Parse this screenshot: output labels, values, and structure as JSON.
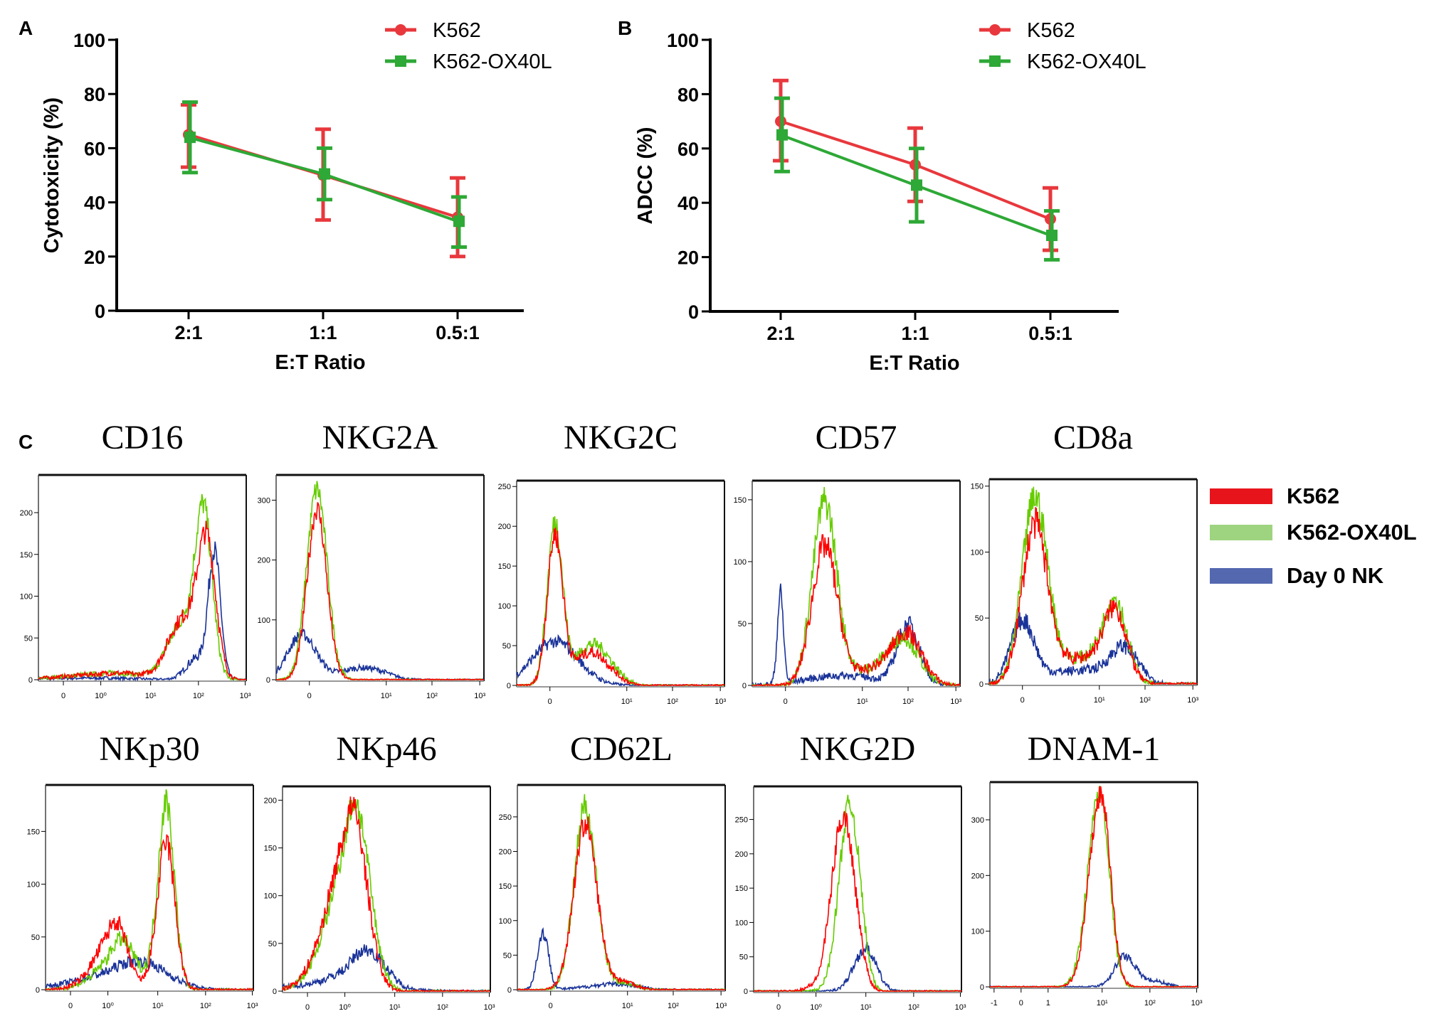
{
  "panel_labels": {
    "a": "A",
    "b": "B",
    "c": "C"
  },
  "colors": {
    "k562": "#e8383d",
    "k562_ox40l": "#2ea836",
    "hist_k562": "#ff0000",
    "hist_ox40l": "#66cc00",
    "hist_day0": "#1a3399",
    "legend_k562": "#e8141c",
    "legend_ox40l": "#9ed47f",
    "legend_day0": "#5468b0"
  },
  "chart_data": [
    {
      "type": "line",
      "panel": "A",
      "xlabel": "E:T Ratio",
      "ylabel": "Cytotoxicity (%)",
      "categories": [
        "2:1",
        "1:1",
        "0.5:1"
      ],
      "ylim": [
        0,
        100
      ],
      "yticks": [
        0,
        20,
        40,
        60,
        80,
        100
      ],
      "legend_position": "top-right",
      "series": [
        {
          "name": "K562",
          "marker": "circle",
          "values": [
            65,
            50,
            34.5
          ],
          "err_high": [
            76,
            67,
            49
          ],
          "err_low": [
            53,
            33.5,
            20
          ]
        },
        {
          "name": "K562-OX40L",
          "marker": "square",
          "values": [
            64,
            50.5,
            33
          ],
          "err_high": [
            77,
            60,
            42
          ],
          "err_low": [
            51,
            41,
            23.5
          ]
        }
      ]
    },
    {
      "type": "line",
      "panel": "B",
      "xlabel": "E:T Ratio",
      "ylabel": "ADCC (%)",
      "categories": [
        "2:1",
        "1:1",
        "0.5:1"
      ],
      "ylim": [
        0,
        100
      ],
      "yticks": [
        0,
        20,
        40,
        60,
        80,
        100
      ],
      "legend_position": "top-right",
      "series": [
        {
          "name": "K562",
          "marker": "circle",
          "values": [
            70,
            54,
            34
          ],
          "err_high": [
            85,
            67.5,
            45.5
          ],
          "err_low": [
            55.5,
            40.5,
            22.5
          ]
        },
        {
          "name": "K562-OX40L",
          "marker": "square",
          "values": [
            65,
            46.5,
            28
          ],
          "err_high": [
            78.5,
            60,
            37
          ],
          "err_low": [
            51.5,
            33,
            19
          ]
        }
      ]
    },
    {
      "type": "histogram_overlay",
      "panel": "C",
      "legend": [
        "K562",
        "K562-OX40L",
        "Day 0 NK"
      ],
      "legend_position": "right",
      "markers": [
        {
          "title": "CD16",
          "ymax": 240,
          "yticks": [
            0,
            50,
            100,
            150,
            200
          ],
          "xticks": [
            {
              "label": "0",
              "value": 0
            },
            {
              "label": "10⁰",
              "value": 1
            },
            {
              "label": "10¹",
              "value": 10
            },
            {
              "label": "10²",
              "value": 100
            },
            {
              "label": "10³",
              "value": 1000
            }
          ],
          "series": {
            "K562": [
              [
                150,
                160,
                0.45
              ],
              [
                45,
                70,
                0.7
              ],
              [
                2,
                8,
                1.2
              ]
            ],
            "K562-OX40L": [
              [
                130,
                190,
                0.42
              ],
              [
                45,
                65,
                0.7
              ],
              [
                2,
                8,
                1.2
              ]
            ],
            "Day 0 NK": [
              [
                220,
                150,
                0.3
              ],
              [
                90,
                25,
                0.5
              ],
              [
                1,
                2,
                1.5
              ]
            ]
          }
        },
        {
          "title": "NKG2A",
          "ymax": 335,
          "yticks": [
            0,
            100,
            200,
            300
          ],
          "xticks": [
            {
              "label": "0",
              "value": 0
            },
            {
              "label": "10¹",
              "value": 10
            },
            {
              "label": "10²",
              "value": 100
            },
            {
              "label": "10³",
              "value": 1000
            }
          ],
          "series": {
            "K562": [
              [
                0.3,
                285,
                0.38
              ]
            ],
            "K562-OX40L": [
              [
                0.3,
                318,
                0.4
              ]
            ],
            "Day 0 NK": [
              [
                -0.3,
                75,
                0.55
              ],
              [
                4,
                20,
                0.9
              ]
            ]
          }
        },
        {
          "title": "NKG2C",
          "ymax": 252,
          "yticks": [
            0,
            50,
            100,
            150,
            200,
            250
          ],
          "xticks": [
            {
              "label": "0",
              "value": 0
            },
            {
              "label": "10¹",
              "value": 10
            },
            {
              "label": "10²",
              "value": 100
            },
            {
              "label": "10³",
              "value": 1000
            }
          ],
          "series": {
            "K562": [
              [
                0.2,
                185,
                0.3
              ],
              [
                2.4,
                42,
                0.7
              ]
            ],
            "K562-OX40L": [
              [
                0.2,
                200,
                0.3
              ],
              [
                2.6,
                52,
                0.7
              ]
            ],
            "Day 0 NK": [
              [
                0.2,
                55,
                0.9
              ]
            ]
          }
        },
        {
          "title": "CD57",
          "ymax": 162,
          "yticks": [
            0,
            50,
            100,
            150
          ],
          "xticks": [
            {
              "label": "0",
              "value": 0
            },
            {
              "label": "10¹",
              "value": 10
            },
            {
              "label": "10²",
              "value": 100
            },
            {
              "label": "10³",
              "value": 1000
            }
          ],
          "series": {
            "K562": [
              [
                2.2,
                112,
                0.5
              ],
              [
                90,
                42,
                0.75
              ],
              [
                15,
                12,
                0.8
              ]
            ],
            "K562-OX40L": [
              [
                2.2,
                148,
                0.48
              ],
              [
                80,
                38,
                0.75
              ],
              [
                15,
                12,
                0.8
              ]
            ],
            "Day 0 NK": [
              [
                -0.2,
                72,
                0.12
              ],
              [
                100,
                48,
                0.55
              ],
              [
                5,
                8,
                1.5
              ]
            ]
          }
        },
        {
          "title": "CD8a",
          "ymax": 152,
          "yticks": [
            0,
            50,
            100,
            150
          ],
          "xticks": [
            {
              "label": "0",
              "value": 0
            },
            {
              "label": "10¹",
              "value": 10
            },
            {
              "label": "10²",
              "value": 100
            },
            {
              "label": "10³",
              "value": 1000
            }
          ],
          "series": {
            "K562": [
              [
                0.5,
                118,
                0.5
              ],
              [
                22,
                55,
                0.6
              ],
              [
                4,
                18,
                0.9
              ]
            ],
            "K562-OX40L": [
              [
                0.5,
                138,
                0.5
              ],
              [
                22,
                62,
                0.6
              ],
              [
                4,
                18,
                0.9
              ]
            ],
            "Day 0 NK": [
              [
                0,
                45,
                0.45
              ],
              [
                35,
                25,
                0.7
              ],
              [
                4,
                10,
                1.5
              ]
            ]
          }
        },
        {
          "title": "NKp30",
          "ymax": 190,
          "yticks": [
            0,
            50,
            100,
            150
          ],
          "xticks": [
            {
              "label": "0",
              "value": 0
            },
            {
              "label": "10⁰",
              "value": 1
            },
            {
              "label": "10¹",
              "value": 10
            },
            {
              "label": "10²",
              "value": 100
            },
            {
              "label": "10³",
              "value": 1000
            }
          ],
          "series": {
            "K562": [
              [
                15,
                140,
                0.42
              ],
              [
                1.5,
                65,
                0.5
              ]
            ],
            "K562-OX40L": [
              [
                15,
                178,
                0.4
              ],
              [
                2,
                48,
                0.6
              ]
            ],
            "Day 0 NK": [
              [
                4,
                27,
                1.3
              ]
            ]
          }
        },
        {
          "title": "NKp46",
          "ymax": 210,
          "yticks": [
            0,
            50,
            100,
            150,
            200
          ],
          "xticks": [
            {
              "label": "0",
              "value": 0
            },
            {
              "label": "10⁰",
              "value": 1
            },
            {
              "label": "10¹",
              "value": 10
            },
            {
              "label": "10²",
              "value": 100
            },
            {
              "label": "10³",
              "value": 1000
            }
          ],
          "series": {
            "K562": [
              [
                1.5,
                192,
                0.6
              ]
            ],
            "K562-OX40L": [
              [
                1.7,
                198,
                0.62
              ]
            ],
            "Day 0 NK": [
              [
                3,
                38,
                0.75
              ],
              [
                1,
                6,
                1.8
              ]
            ]
          }
        },
        {
          "title": "CD62L",
          "ymax": 290,
          "yticks": [
            0,
            50,
            100,
            150,
            200,
            250
          ],
          "xticks": [
            {
              "label": "0",
              "value": 0
            },
            {
              "label": "10¹",
              "value": 10
            },
            {
              "label": "10²",
              "value": 100
            },
            {
              "label": "10³",
              "value": 1000
            }
          ],
          "series": {
            "K562": [
              [
                1.8,
                240,
                0.45
              ],
              [
                8,
                12,
                0.6
              ]
            ],
            "K562-OX40L": [
              [
                1.8,
                265,
                0.43
              ],
              [
                8,
                10,
                0.6
              ]
            ],
            "Day 0 NK": [
              [
                -0.3,
                82,
                0.22
              ],
              [
                6,
                8,
                1.0
              ]
            ]
          }
        },
        {
          "title": "NKG2D",
          "ymax": 292,
          "yticks": [
            0,
            50,
            100,
            150,
            200,
            250
          ],
          "xticks": [
            {
              "label": "0",
              "value": 0
            },
            {
              "label": "10⁰",
              "value": 1
            },
            {
              "label": "10¹",
              "value": 10
            },
            {
              "label": "10²",
              "value": 100
            },
            {
              "label": "10³",
              "value": 1000
            }
          ],
          "series": {
            "K562": [
              [
                3.8,
                255,
                0.5
              ]
            ],
            "K562-OX40L": [
              [
                5,
                272,
                0.45
              ]
            ],
            "Day 0 NK": [
              [
                10,
                62,
                0.5
              ]
            ]
          }
        },
        {
          "title": "DNAM-1",
          "ymax": 360,
          "yticks": [
            0,
            100,
            200,
            300
          ],
          "xticks": [
            {
              "label": "-1",
              "value": -1
            },
            {
              "label": "0",
              "value": 0
            },
            {
              "label": "1",
              "value": 1
            },
            {
              "label": "10¹",
              "value": 10
            },
            {
              "label": "10²",
              "value": 100
            },
            {
              "label": "10³",
              "value": 1000
            }
          ],
          "series": {
            "K562": [
              [
                9.5,
                345,
                0.45
              ]
            ],
            "K562-OX40L": [
              [
                9,
                350,
                0.45
              ]
            ],
            "Day 0 NK": [
              [
                30,
                55,
                0.5
              ],
              [
                120,
                10,
                0.6
              ]
            ]
          }
        }
      ]
    }
  ]
}
